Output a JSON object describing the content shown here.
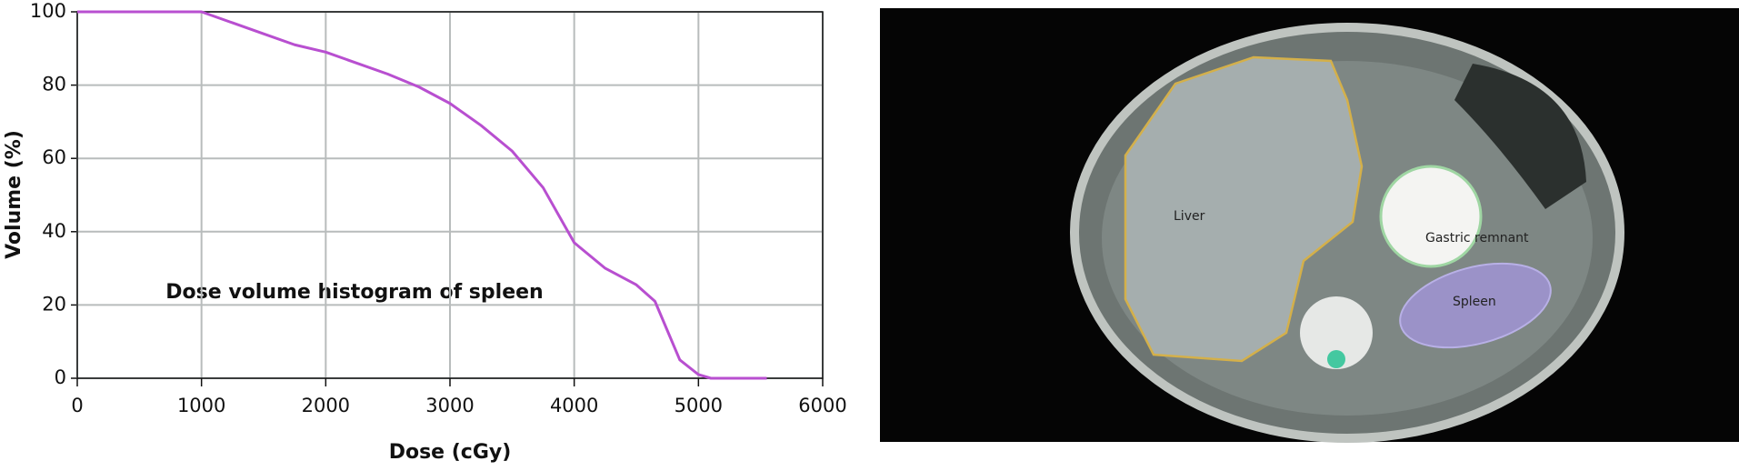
{
  "chart_data": {
    "type": "line",
    "annotation": "Dose volume histogram of spleen",
    "xlabel": "Dose (cGy)",
    "ylabel": "Volume (%)",
    "x": [
      0,
      500,
      1000,
      1250,
      1500,
      1750,
      2000,
      2250,
      2500,
      2750,
      3000,
      3250,
      3500,
      3750,
      3900,
      4000,
      4250,
      4500,
      4650,
      4750,
      4850,
      5000,
      5100,
      5250,
      5550
    ],
    "values": [
      100,
      100,
      100,
      97,
      94,
      91,
      89,
      86,
      83,
      79.5,
      75,
      69,
      62,
      52,
      43,
      37,
      30,
      25.5,
      21,
      13,
      5,
      1,
      0,
      0,
      0
    ],
    "color": "#b84fd0",
    "xlim": [
      0,
      6000
    ],
    "xticks": [
      0,
      1000,
      2000,
      3000,
      4000,
      5000,
      6000
    ],
    "ylim": [
      0,
      100
    ],
    "yticks": [
      0,
      20,
      40,
      60,
      80,
      100
    ],
    "grid": true
  },
  "image": {
    "labels": [
      "Liver",
      "Gastric remnant",
      "Spleen"
    ]
  }
}
